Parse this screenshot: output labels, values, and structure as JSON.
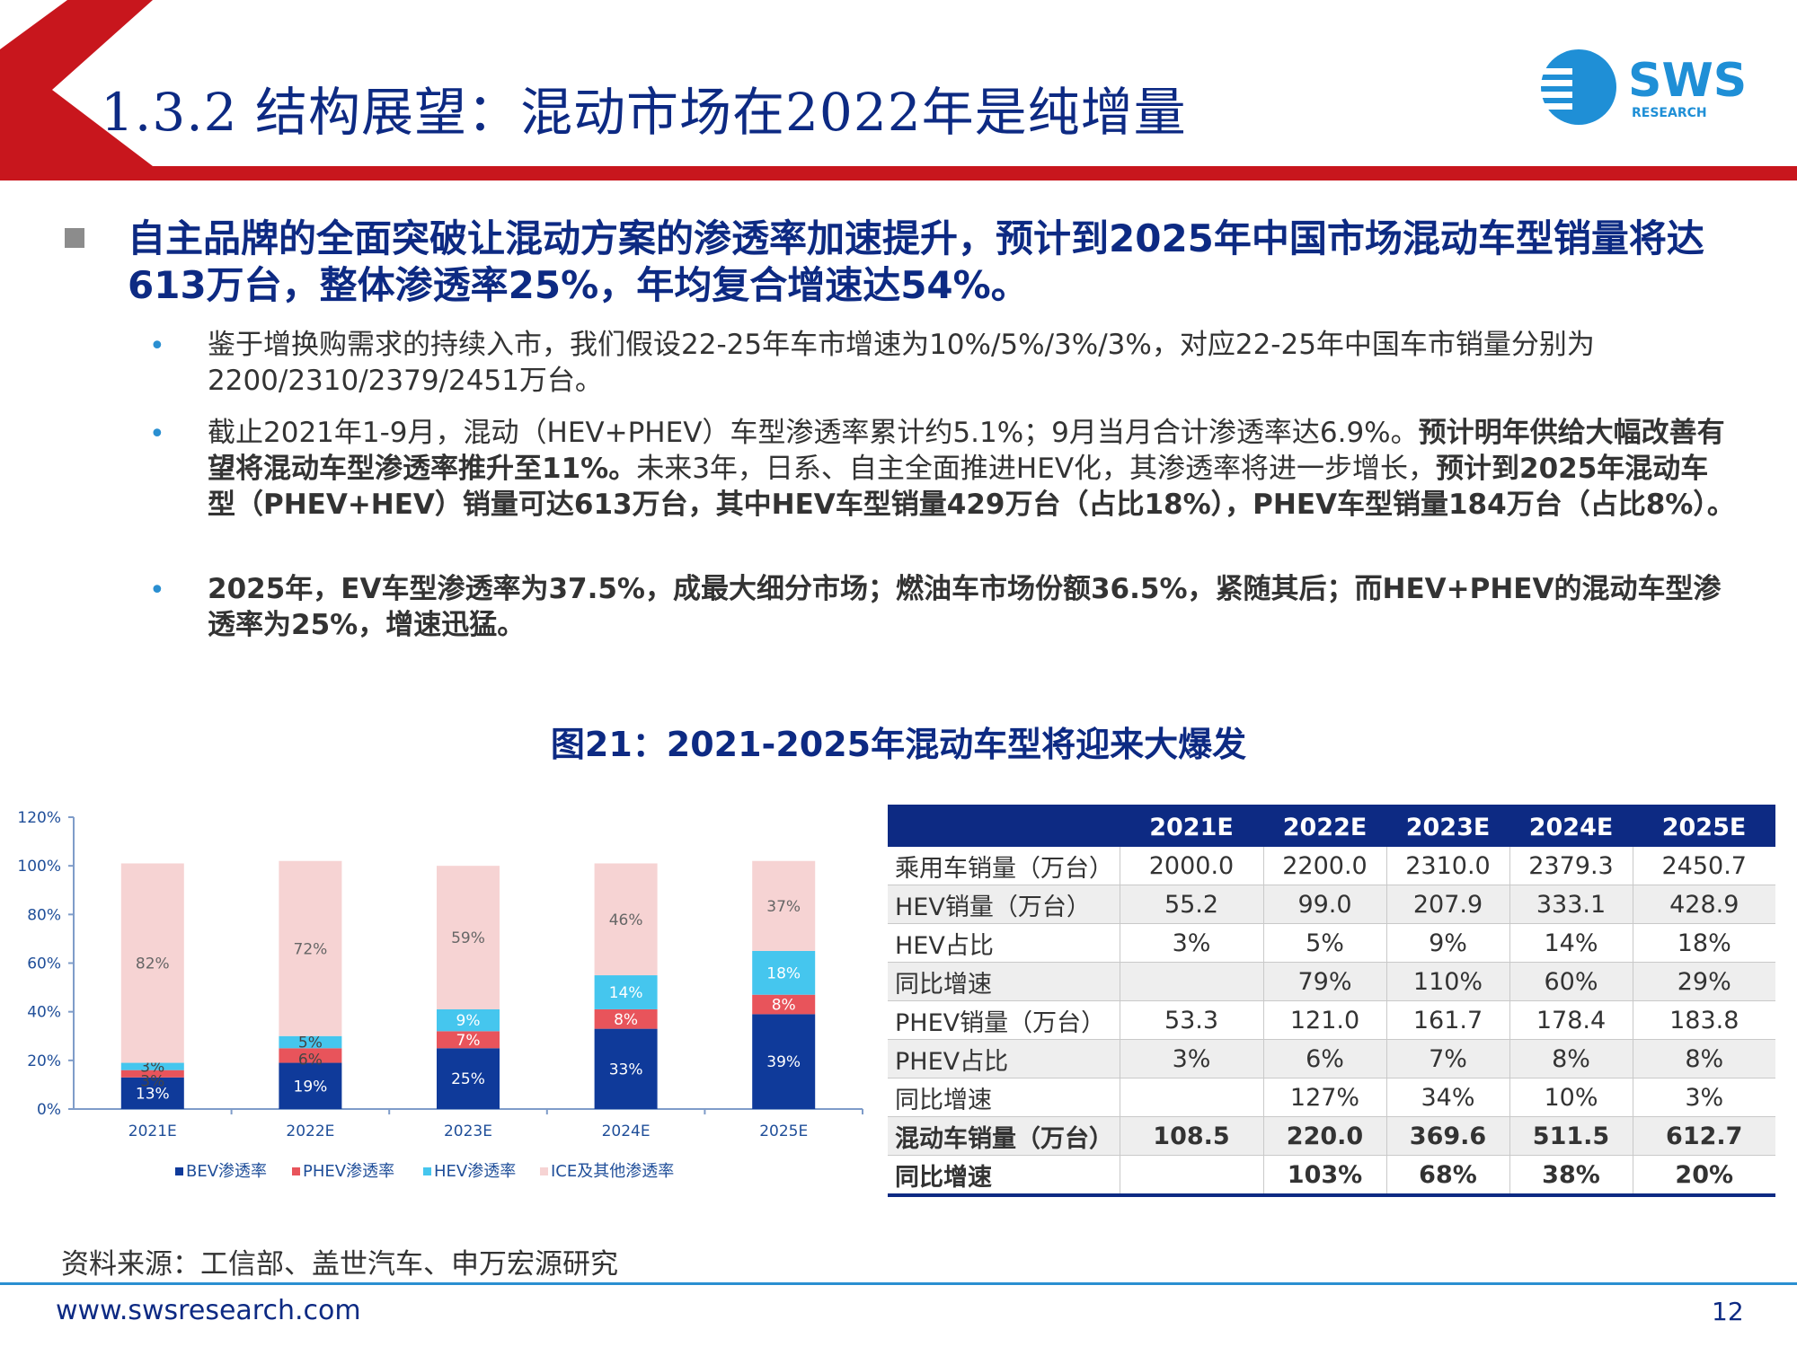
{
  "header": {
    "title": "1.3.2 结构展望：混动市场在2022年是纯增量",
    "logo_text": "SWS",
    "logo_subtext": "RESEARCH"
  },
  "colors": {
    "navy": "#0d2a83",
    "red": "#c8161d",
    "bev": "#0f3a9a",
    "phev": "#e8545b",
    "hev": "#45c6ee",
    "ice": "#f6d3d3"
  },
  "lead": "自主品牌的全面突破让混动方案的渗透率加速提升，预计到2025年中国市场混动车型销量将达613万台，整体渗透率25%，年均复合增速达54%。",
  "bullets": [
    {
      "text": "鉴于增换购需求的持续入市，我们假设22-25年车市增速为10%/5%/3%/3%，对应22-25年中国车市销量分别为2200/2310/2379/2451万台。"
    },
    {
      "text_plain": "截止2021年1-9月，混动（HEV+PHEV）车型渗透率累计约5.1%；9月当月合计渗透率达6.9%。",
      "text_bold1": "预计明年供给大幅改善有望将混动车型渗透率推升至11%。",
      "text_plain2": "未来3年，日系、自主全面推进HEV化，其渗透率将进一步增长，",
      "text_bold2": "预计到2025年混动车型（PHEV+HEV）销量可达613万台，其中HEV车型销量429万台（占比18%），PHEV车型销量184万台（占比8%）。"
    },
    {
      "text": "2025年，EV车型渗透率为37.5%，成最大细分市场；燃油车市场份额36.5%，紧随其后；而HEV+PHEV的混动车型渗透率为25%，增速迅猛。"
    }
  ],
  "figure_title": "图21：2021-2025年混动车型将迎来大爆发",
  "chart_data": {
    "type": "bar",
    "stacked": true,
    "categories": [
      "2021E",
      "2022E",
      "2023E",
      "2024E",
      "2025E"
    ],
    "ylim": [
      0,
      120
    ],
    "yticks": [
      "0%",
      "20%",
      "40%",
      "60%",
      "80%",
      "100%",
      "120%"
    ],
    "series": [
      {
        "name": "BEV渗透率",
        "values": [
          13,
          19,
          25,
          33,
          39
        ],
        "labels": [
          "13%",
          "19%",
          "25%",
          "33%",
          "39%"
        ],
        "color": "#0f3a9a"
      },
      {
        "name": "PHEV渗透率",
        "values": [
          3,
          6,
          7,
          8,
          8
        ],
        "labels": [
          "3%",
          "6%",
          "7%",
          "8%",
          "8%"
        ],
        "color": "#e8545b"
      },
      {
        "name": "HEV渗透率",
        "values": [
          3,
          5,
          9,
          14,
          18
        ],
        "labels": [
          "3%",
          "5%",
          "9%",
          "14%",
          "18%"
        ],
        "color": "#45c6ee"
      },
      {
        "name": "ICE及其他渗透率",
        "values": [
          82,
          72,
          59,
          46,
          37
        ],
        "labels": [
          "82%",
          "72%",
          "59%",
          "46%",
          "37%"
        ],
        "color": "#f6d3d3"
      }
    ],
    "legend_position": "bottom"
  },
  "table": {
    "headers": [
      "",
      "2021E",
      "2022E",
      "2023E",
      "2024E",
      "2025E"
    ],
    "rows": [
      [
        "乘用车销量（万台）",
        "2000.0",
        "2200.0",
        "2310.0",
        "2379.3",
        "2450.7"
      ],
      [
        "HEV销量（万台）",
        "55.2",
        "99.0",
        "207.9",
        "333.1",
        "428.9"
      ],
      [
        "HEV占比",
        "3%",
        "5%",
        "9%",
        "14%",
        "18%"
      ],
      [
        "同比增速",
        "",
        "79%",
        "110%",
        "60%",
        "29%"
      ],
      [
        "PHEV销量（万台）",
        "53.3",
        "121.0",
        "161.7",
        "178.4",
        "183.8"
      ],
      [
        "PHEV占比",
        "3%",
        "6%",
        "7%",
        "8%",
        "8%"
      ],
      [
        "同比增速",
        "",
        "127%",
        "34%",
        "10%",
        "3%"
      ],
      [
        "混动车销量（万台）",
        "108.5",
        "220.0",
        "369.6",
        "511.5",
        "612.7"
      ],
      [
        "同比增速",
        "",
        "103%",
        "68%",
        "38%",
        "20%"
      ]
    ]
  },
  "source": "资料来源：工信部、盖世汽车、申万宏源研究",
  "footer": {
    "url": "www.swsresearch.com",
    "page": "12"
  }
}
